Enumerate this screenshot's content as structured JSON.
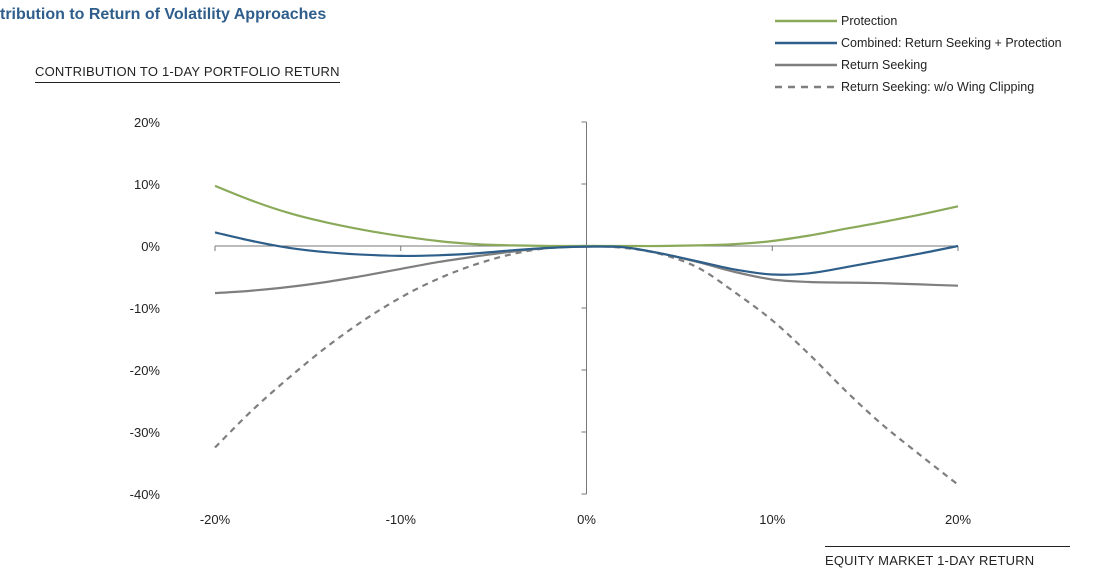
{
  "chart_data": {
    "type": "line",
    "title": "tribution to Return of Volatility Approaches",
    "ylabel": "CONTRIBUTION TO 1-DAY PORTFOLIO RETURN",
    "xlabel": "EQUITY MARKET 1-DAY RETURN",
    "xlim": [
      -0.2,
      0.2
    ],
    "ylim": [
      -0.4,
      0.2
    ],
    "x_ticks": [
      -0.2,
      -0.1,
      0,
      0.1,
      0.2
    ],
    "x_tick_labels": [
      "-20%",
      "-10%",
      "0%",
      "10%",
      "20%"
    ],
    "y_ticks": [
      0.2,
      0.1,
      0,
      -0.1,
      -0.2,
      -0.3,
      -0.4
    ],
    "y_tick_labels": [
      "20%",
      "10%",
      "0%",
      "-10%",
      "-20%",
      "-30%",
      "-40%"
    ],
    "legend_position": "top-right",
    "grid": false,
    "series": [
      {
        "name": "Protection",
        "color": "#8aaa5a",
        "dashed": false,
        "points": [
          [
            -0.2,
            0.097
          ],
          [
            -0.18,
            0.073
          ],
          [
            -0.16,
            0.053
          ],
          [
            -0.14,
            0.038
          ],
          [
            -0.12,
            0.026
          ],
          [
            -0.1,
            0.016
          ],
          [
            -0.08,
            0.008
          ],
          [
            -0.06,
            0.003
          ],
          [
            -0.04,
            0.001
          ],
          [
            -0.02,
            0.0
          ],
          [
            0.0,
            0.0
          ],
          [
            0.02,
            0.0
          ],
          [
            0.04,
            0.0
          ],
          [
            0.06,
            0.001
          ],
          [
            0.08,
            0.003
          ],
          [
            0.1,
            0.008
          ],
          [
            0.12,
            0.017
          ],
          [
            0.14,
            0.028
          ],
          [
            0.16,
            0.039
          ],
          [
            0.18,
            0.051
          ],
          [
            0.2,
            0.064
          ]
        ]
      },
      {
        "name": "Combined: Return Seeking + Protection",
        "color": "#2e5f8a",
        "dashed": false,
        "points": [
          [
            -0.2,
            0.022
          ],
          [
            -0.18,
            0.008
          ],
          [
            -0.16,
            -0.003
          ],
          [
            -0.14,
            -0.01
          ],
          [
            -0.12,
            -0.014
          ],
          [
            -0.1,
            -0.016
          ],
          [
            -0.08,
            -0.015
          ],
          [
            -0.06,
            -0.012
          ],
          [
            -0.04,
            -0.007
          ],
          [
            -0.02,
            -0.003
          ],
          [
            0.0,
            -0.001
          ],
          [
            0.02,
            -0.002
          ],
          [
            0.04,
            -0.012
          ],
          [
            0.06,
            -0.025
          ],
          [
            0.08,
            -0.038
          ],
          [
            0.1,
            -0.046
          ],
          [
            0.12,
            -0.044
          ],
          [
            0.14,
            -0.034
          ],
          [
            0.16,
            -0.023
          ],
          [
            0.18,
            -0.012
          ],
          [
            0.2,
            0.0
          ]
        ]
      },
      {
        "name": "Return Seeking",
        "color": "#7f7f7f",
        "dashed": false,
        "points": [
          [
            -0.2,
            -0.076
          ],
          [
            -0.18,
            -0.072
          ],
          [
            -0.16,
            -0.066
          ],
          [
            -0.14,
            -0.058
          ],
          [
            -0.12,
            -0.048
          ],
          [
            -0.1,
            -0.037
          ],
          [
            -0.08,
            -0.026
          ],
          [
            -0.06,
            -0.017
          ],
          [
            -0.04,
            -0.009
          ],
          [
            -0.02,
            -0.003
          ],
          [
            0.0,
            -0.001
          ],
          [
            0.02,
            -0.002
          ],
          [
            0.04,
            -0.012
          ],
          [
            0.06,
            -0.026
          ],
          [
            0.08,
            -0.042
          ],
          [
            0.1,
            -0.054
          ],
          [
            0.12,
            -0.058
          ],
          [
            0.14,
            -0.059
          ],
          [
            0.16,
            -0.06
          ],
          [
            0.18,
            -0.062
          ],
          [
            0.2,
            -0.064
          ]
        ]
      },
      {
        "name": "Return Seeking: w/o Wing Clipping",
        "color": "#7f7f7f",
        "dashed": true,
        "points": [
          [
            -0.2,
            -0.325
          ],
          [
            -0.18,
            -0.265
          ],
          [
            -0.16,
            -0.212
          ],
          [
            -0.14,
            -0.163
          ],
          [
            -0.12,
            -0.12
          ],
          [
            -0.1,
            -0.083
          ],
          [
            -0.08,
            -0.053
          ],
          [
            -0.06,
            -0.03
          ],
          [
            -0.04,
            -0.013
          ],
          [
            -0.02,
            -0.003
          ],
          [
            0.0,
            0.0
          ],
          [
            0.02,
            -0.003
          ],
          [
            0.04,
            -0.013
          ],
          [
            0.06,
            -0.035
          ],
          [
            0.08,
            -0.075
          ],
          [
            0.1,
            -0.12
          ],
          [
            0.12,
            -0.175
          ],
          [
            0.14,
            -0.235
          ],
          [
            0.16,
            -0.29
          ],
          [
            0.18,
            -0.338
          ],
          [
            0.2,
            -0.385
          ]
        ]
      }
    ]
  }
}
